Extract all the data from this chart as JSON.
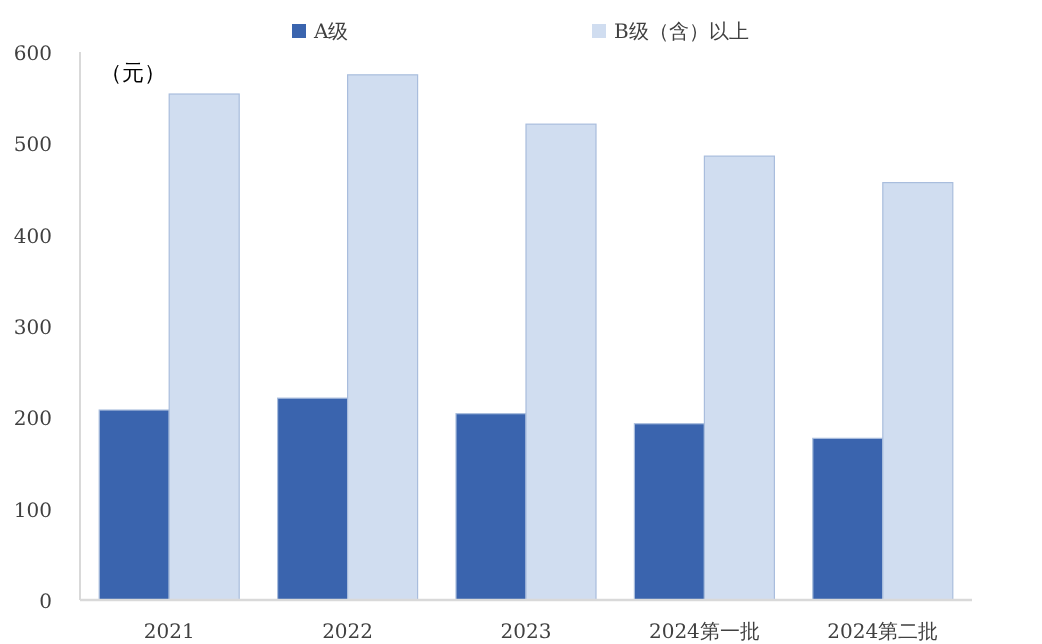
{
  "chart_data": {
    "type": "bar",
    "ylabel": "（元）",
    "categories": [
      "2021",
      "2022",
      "2023",
      "2024第一批",
      "2024第二批"
    ],
    "series": [
      {
        "name": "A级",
        "color": "#3a64ae",
        "values": [
          208,
          221,
          204,
          193,
          177
        ]
      },
      {
        "name": "B级（含）以上",
        "color": "#d0ddf0",
        "values": [
          554,
          575,
          521,
          486,
          457
        ]
      }
    ],
    "ylim": [
      0,
      600
    ],
    "yticks": [
      0,
      100,
      200,
      300,
      400,
      500,
      600
    ],
    "grid": false,
    "legend": "top"
  }
}
